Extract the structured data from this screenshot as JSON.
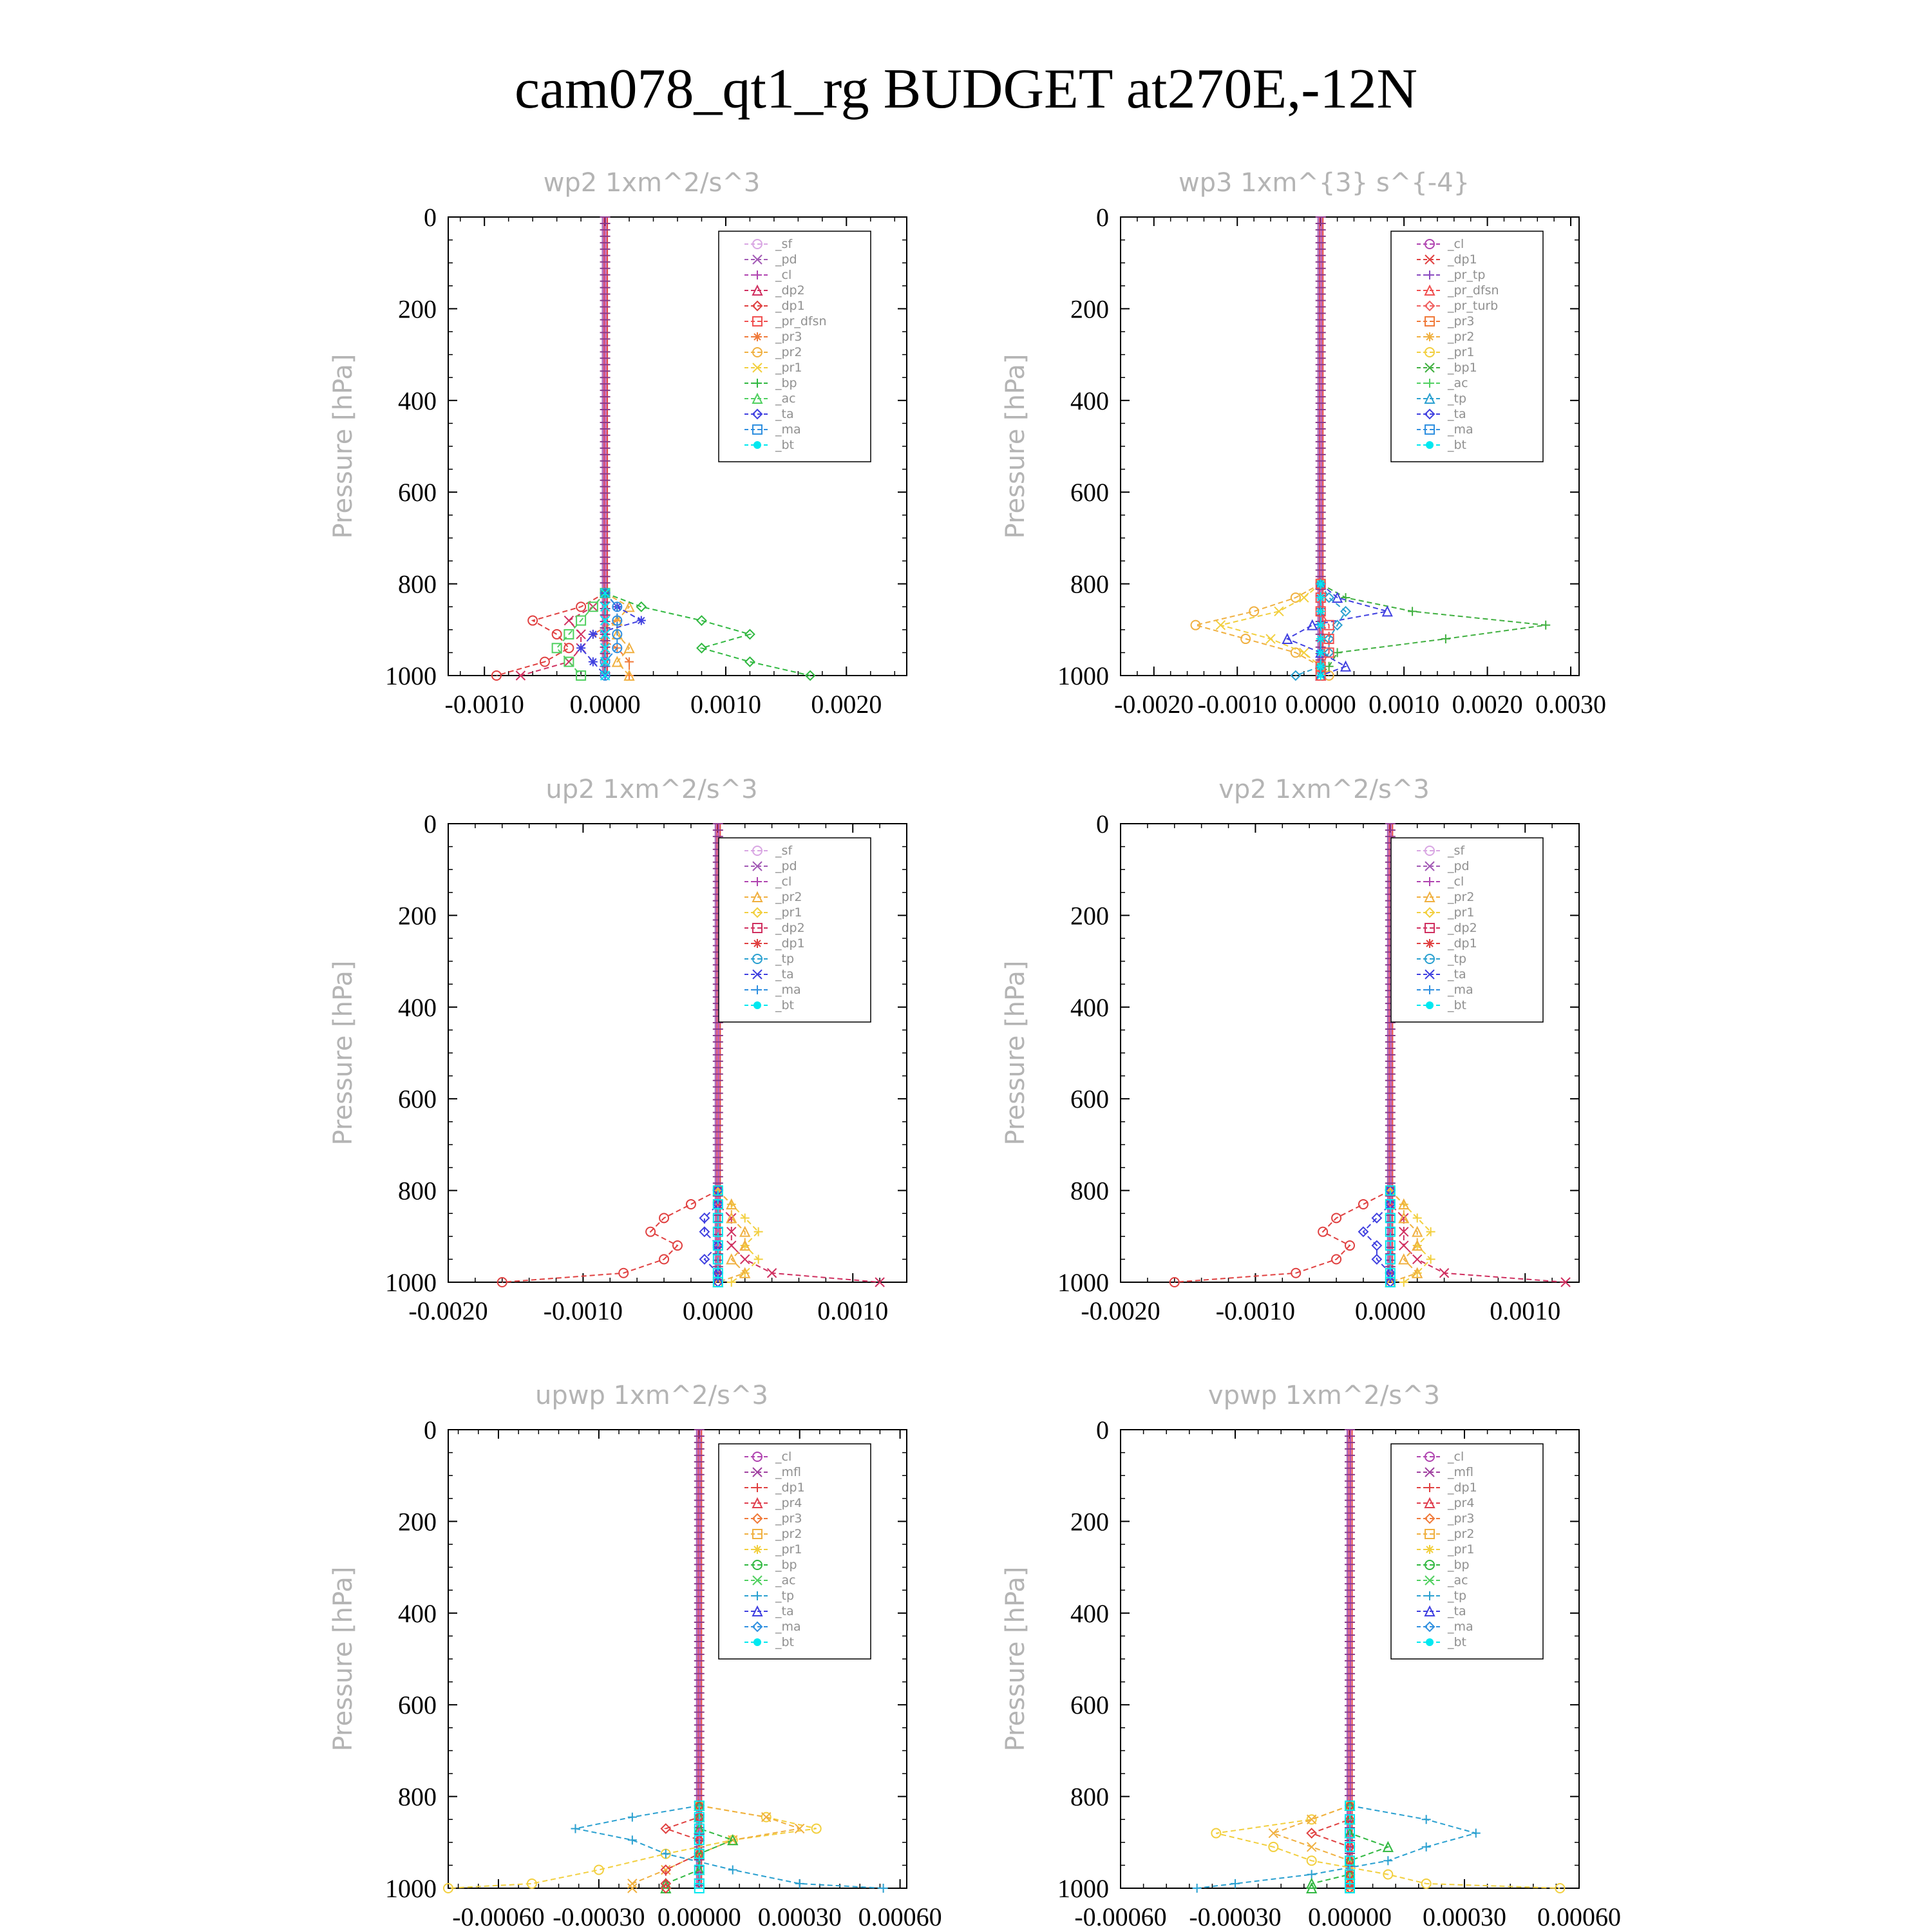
{
  "title": "cam078_qt1_rg  BUDGET at270E,-12N",
  "colors": {
    "_sf": "#d9a6e3",
    "_pd": "#a25ab5",
    "_cl": "#b044b0",
    "_dp2": "#d03060",
    "_dp1": "#e04040",
    "_pr_dfsn": "#f05050",
    "_pr3": "#f07a3a",
    "_pr2": "#f0b040",
    "_pr1": "#f2cf3e",
    "_bp": "#30b840",
    "_ac": "#50d060",
    "_ta": "#4040e0",
    "_ma": "#3090e0",
    "_bt": "#00e8f0",
    "_tp": "#2aa0d0",
    "_pr_tp": "#8a4ac0",
    "_pr_turb": "#f06060",
    "_bp1": "#40b040",
    "_mfl": "#a040a0",
    "_pr4": "#e04050"
  },
  "chart_data": [
    {
      "type": "line",
      "title": "wp2  1xm^2/s^3",
      "ylabel": "Pressure [hPa]",
      "xlim": [
        -0.0013,
        0.0025
      ],
      "ylim": [
        0,
        1000
      ],
      "y_inverted": true,
      "xticks": [
        -0.001,
        0.0,
        0.001,
        0.002
      ],
      "xtick_labels": [
        "-0.0010",
        "0.0000",
        "0.0010",
        "0.0020"
      ],
      "yticks": [
        0,
        200,
        400,
        600,
        800,
        1000
      ],
      "ytick_labels": [
        "0",
        "200",
        "400",
        "600",
        "800",
        "1000"
      ],
      "legend_position": "top-right",
      "legend": [
        "_sf",
        "_pd",
        "_cl",
        "_dp2",
        "_dp1",
        "_pr_dfsn",
        "_pr3",
        "_pr2",
        "_pr1",
        "_bp",
        "_ac",
        "_ta",
        "_ma",
        "_bt"
      ],
      "y": [
        820,
        850,
        880,
        910,
        940,
        970,
        1000
      ],
      "series": [
        {
          "name": "_dp1",
          "x": [
            0,
            -0.0002,
            -0.0006,
            -0.0004,
            -0.0003,
            -0.0005,
            -0.0009
          ]
        },
        {
          "name": "_dp2",
          "x": [
            0,
            -0.0001,
            -0.0003,
            -0.0002,
            -0.0002,
            -0.0003,
            -0.0007
          ]
        },
        {
          "name": "_pr3",
          "x": [
            0,
            0.0001,
            0.0001,
            -0.0001,
            0.0001,
            0.0002,
            0.0002
          ]
        },
        {
          "name": "_pr2",
          "x": [
            0,
            0.0002,
            0.0001,
            0.0001,
            0.0002,
            0.0001,
            0.0002
          ]
        },
        {
          "name": "_bp",
          "x": [
            0,
            0.0003,
            0.0008,
            0.0012,
            0.0008,
            0.0012,
            0.0017
          ]
        },
        {
          "name": "_ac",
          "x": [
            0,
            -0.0001,
            -0.0002,
            -0.0003,
            -0.0004,
            -0.0003,
            -0.0002
          ]
        },
        {
          "name": "_ta",
          "x": [
            0,
            0.0001,
            0.0003,
            -0.0001,
            -0.0002,
            -0.0001,
            0
          ]
        },
        {
          "name": "_ma",
          "x": [
            0,
            0.0001,
            0.0001,
            0.0001,
            0.0001,
            0,
            0
          ]
        },
        {
          "name": "_bt",
          "x": [
            0,
            0,
            0,
            0,
            0,
            0,
            0
          ]
        }
      ]
    },
    {
      "type": "line",
      "title": "wp3  1xm^{3} s^{-4}",
      "ylabel": "Pressure [hPa]",
      "xlim": [
        -0.0024,
        0.0031
      ],
      "ylim": [
        0,
        1000
      ],
      "y_inverted": true,
      "xticks": [
        -0.002,
        -0.001,
        0.0,
        0.001,
        0.002,
        0.003
      ],
      "xtick_labels": [
        "-0.0020",
        "-0.0010",
        "0.0000",
        "0.0010",
        "0.0020",
        "0.0030"
      ],
      "yticks": [
        0,
        200,
        400,
        600,
        800,
        1000
      ],
      "ytick_labels": [
        "0",
        "200",
        "400",
        "600",
        "800",
        "1000"
      ],
      "legend_position": "top-right",
      "legend": [
        "_cl",
        "_dp1",
        "_pr_tp",
        "_pr_dfsn",
        "_pr_turb",
        "_pr3",
        "_pr2",
        "_pr1",
        "_bp1",
        "_ac",
        "_tp",
        "_ta",
        "_ma",
        "_bt"
      ],
      "y": [
        800,
        830,
        860,
        890,
        920,
        950,
        980,
        1000
      ],
      "series": [
        {
          "name": "_pr2",
          "x": [
            0,
            -0.0003,
            -0.0008,
            -0.0015,
            -0.0009,
            -0.0003,
            0,
            0.0001
          ]
        },
        {
          "name": "_pr1",
          "x": [
            0,
            -0.0002,
            -0.0005,
            -0.0012,
            -0.0006,
            -0.0002,
            0,
            0
          ]
        },
        {
          "name": "_bp1",
          "x": [
            0,
            0.0003,
            0.0011,
            0.0027,
            0.0015,
            0.0002,
            0.0001,
            0
          ]
        },
        {
          "name": "_ta",
          "x": [
            0,
            0.0002,
            0.0008,
            -0.0001,
            -0.0004,
            0,
            0.0003,
            0
          ]
        },
        {
          "name": "_tp",
          "x": [
            0,
            0.0001,
            0.0003,
            0.0002,
            0.0001,
            0.0001,
            0,
            -0.0003
          ]
        },
        {
          "name": "_pr_dfsn",
          "x": [
            0,
            0,
            0,
            0.0001,
            0.0001,
            0.0001,
            0,
            0
          ]
        },
        {
          "name": "_bt",
          "x": [
            0,
            0,
            0,
            0,
            0,
            0,
            0,
            0
          ]
        }
      ]
    },
    {
      "type": "line",
      "title": "up2  1xm^2/s^3",
      "ylabel": "Pressure [hPa]",
      "xlim": [
        -0.002,
        0.0014
      ],
      "ylim": [
        0,
        1000
      ],
      "y_inverted": true,
      "xticks": [
        -0.002,
        -0.001,
        0.0,
        0.001
      ],
      "xtick_labels": [
        "-0.0020",
        "-0.0010",
        "0.0000",
        "0.0010"
      ],
      "yticks": [
        0,
        200,
        400,
        600,
        800,
        1000
      ],
      "ytick_labels": [
        "0",
        "200",
        "400",
        "600",
        "800",
        "1000"
      ],
      "legend_position": "top-right",
      "legend": [
        "_sf",
        "_pd",
        "_cl",
        "_pr2",
        "_pr1",
        "_dp2",
        "_dp1",
        "_tp",
        "_ta",
        "_ma",
        "_bt"
      ],
      "y": [
        800,
        830,
        860,
        890,
        920,
        950,
        980,
        1000
      ],
      "series": [
        {
          "name": "_dp1",
          "x": [
            0,
            -0.0002,
            -0.0004,
            -0.0005,
            -0.0003,
            -0.0004,
            -0.0007,
            -0.0016
          ]
        },
        {
          "name": "_dp2",
          "x": [
            0,
            0,
            0.0001,
            0.0001,
            0.0001,
            0.0002,
            0.0004,
            0.0012
          ]
        },
        {
          "name": "_pr1",
          "x": [
            0,
            0.0001,
            0.0002,
            0.0003,
            0.0002,
            0.0003,
            0.0002,
            0.0001
          ]
        },
        {
          "name": "_pr2",
          "x": [
            0,
            0.0001,
            0.0001,
            0.0002,
            0.0002,
            0.0001,
            0.0002,
            0
          ]
        },
        {
          "name": "_ta",
          "x": [
            0,
            0,
            -0.0001,
            -0.0001,
            0,
            -0.0001,
            0,
            0
          ]
        },
        {
          "name": "_bt",
          "x": [
            0,
            0,
            0,
            0,
            0,
            0,
            0,
            0
          ]
        }
      ]
    },
    {
      "type": "line",
      "title": "vp2  1xm^2/s^3",
      "ylabel": "Pressure [hPa]",
      "xlim": [
        -0.002,
        0.0014
      ],
      "ylim": [
        0,
        1000
      ],
      "y_inverted": true,
      "xticks": [
        -0.002,
        -0.001,
        0.0,
        0.001
      ],
      "xtick_labels": [
        "-0.0020",
        "-0.0010",
        "0.0000",
        "0.0010"
      ],
      "yticks": [
        0,
        200,
        400,
        600,
        800,
        1000
      ],
      "ytick_labels": [
        "0",
        "200",
        "400",
        "600",
        "800",
        "1000"
      ],
      "legend_position": "top-right",
      "legend": [
        "_sf",
        "_pd",
        "_cl",
        "_pr2",
        "_pr1",
        "_dp2",
        "_dp1",
        "_tp",
        "_ta",
        "_ma",
        "_bt"
      ],
      "y": [
        800,
        830,
        860,
        890,
        920,
        950,
        980,
        1000
      ],
      "series": [
        {
          "name": "_dp1",
          "x": [
            0,
            -0.0002,
            -0.0004,
            -0.0005,
            -0.0003,
            -0.0004,
            -0.0007,
            -0.0016
          ]
        },
        {
          "name": "_dp2",
          "x": [
            0,
            0,
            0.0001,
            0.0001,
            0.0001,
            0.0002,
            0.0004,
            0.0013
          ]
        },
        {
          "name": "_pr1",
          "x": [
            0,
            0.0001,
            0.0002,
            0.0003,
            0.0002,
            0.0003,
            0.0002,
            0.0001
          ]
        },
        {
          "name": "_pr2",
          "x": [
            0,
            0.0001,
            0.0001,
            0.0002,
            0.0002,
            0.0001,
            0.0002,
            0
          ]
        },
        {
          "name": "_ta",
          "x": [
            0,
            0,
            -0.0001,
            -0.0002,
            -0.0001,
            -0.0001,
            0,
            0
          ]
        },
        {
          "name": "_bt",
          "x": [
            0,
            0,
            0,
            0,
            0,
            0,
            0,
            0
          ]
        }
      ]
    },
    {
      "type": "line",
      "title": "upwp  1xm^2/s^3",
      "ylabel": "Pressure [hPa]",
      "xlim": [
        -0.00075,
        0.00062
      ],
      "ylim": [
        0,
        1000
      ],
      "y_inverted": true,
      "xticks": [
        -0.0006,
        -0.0003,
        0.0,
        0.0003,
        0.0006
      ],
      "xtick_labels": [
        "-0.00060",
        "-0.00030",
        "0.00000",
        "0.00030",
        "0.00060"
      ],
      "yticks": [
        0,
        200,
        400,
        600,
        800,
        1000
      ],
      "ytick_labels": [
        "0",
        "200",
        "400",
        "600",
        "800",
        "1000"
      ],
      "legend_position": "top-right",
      "legend": [
        "_cl",
        "_mfl",
        "_dp1",
        "_pr4",
        "_pr3",
        "_pr2",
        "_pr1",
        "_bp",
        "_ac",
        "_tp",
        "_ta",
        "_ma",
        "_bt"
      ],
      "y": [
        820,
        845,
        870,
        895,
        925,
        960,
        990,
        1000
      ],
      "series": [
        {
          "name": "_pr1",
          "x": [
            0,
            0.0002,
            0.00035,
            0.0001,
            -0.0001,
            -0.0003,
            -0.0005,
            -0.00075
          ]
        },
        {
          "name": "_pr2",
          "x": [
            0,
            0.0002,
            0.0003,
            0.0001,
            0,
            -0.0001,
            -0.0002,
            -0.0002
          ]
        },
        {
          "name": "_tp",
          "x": [
            0,
            -0.0002,
            -0.00037,
            -0.0002,
            -0.0001,
            0.0001,
            0.0003,
            0.00055
          ]
        },
        {
          "name": "_bp",
          "x": [
            0,
            0,
            0,
            0.0001,
            0,
            0,
            -0.0001,
            -0.0001
          ]
        },
        {
          "name": "_dp1",
          "x": [
            0,
            0,
            -0.0001,
            0,
            0,
            -0.0001,
            -0.0001,
            -0.0001
          ]
        },
        {
          "name": "_bt",
          "x": [
            0,
            0,
            0,
            0,
            0,
            0,
            0,
            0
          ]
        }
      ]
    },
    {
      "type": "line",
      "title": "vpwp  1xm^2/s^3",
      "ylabel": "Pressure [hPa]",
      "xlim": [
        -0.0006,
        0.0006
      ],
      "ylim": [
        0,
        1000
      ],
      "y_inverted": true,
      "xticks": [
        -0.0006,
        -0.0003,
        0.0,
        0.0003,
        0.0006
      ],
      "xtick_labels": [
        "-0.00060",
        "-0.00030",
        "0.00000",
        "0.00030",
        "0.00060"
      ],
      "yticks": [
        0,
        200,
        400,
        600,
        800,
        1000
      ],
      "ytick_labels": [
        "0",
        "200",
        "400",
        "600",
        "800",
        "1000"
      ],
      "legend_position": "top-right",
      "legend": [
        "_cl",
        "_mfl",
        "_dp1",
        "_pr4",
        "_pr3",
        "_pr2",
        "_pr1",
        "_bp",
        "_ac",
        "_tp",
        "_ta",
        "_ma",
        "_bt"
      ],
      "y": [
        820,
        850,
        880,
        910,
        940,
        970,
        990,
        1000
      ],
      "series": [
        {
          "name": "_pr1",
          "x": [
            0,
            -0.0001,
            -0.00035,
            -0.0002,
            -0.0001,
            0.0001,
            0.0002,
            0.00055
          ]
        },
        {
          "name": "_pr2",
          "x": [
            0,
            -0.0001,
            -0.0002,
            -0.0001,
            0,
            0,
            0,
            0
          ]
        },
        {
          "name": "_tp",
          "x": [
            0,
            0.0002,
            0.00033,
            0.0002,
            0.0001,
            -0.0001,
            -0.0003,
            -0.0004
          ]
        },
        {
          "name": "_bp",
          "x": [
            0,
            0,
            0,
            0.0001,
            0,
            0,
            -0.0001,
            -0.0001
          ]
        },
        {
          "name": "_dp1",
          "x": [
            0,
            0,
            -0.0001,
            0,
            0,
            0,
            0,
            0
          ]
        },
        {
          "name": "_bt",
          "x": [
            0,
            0,
            0,
            0,
            0,
            0,
            0,
            0
          ]
        }
      ]
    }
  ]
}
